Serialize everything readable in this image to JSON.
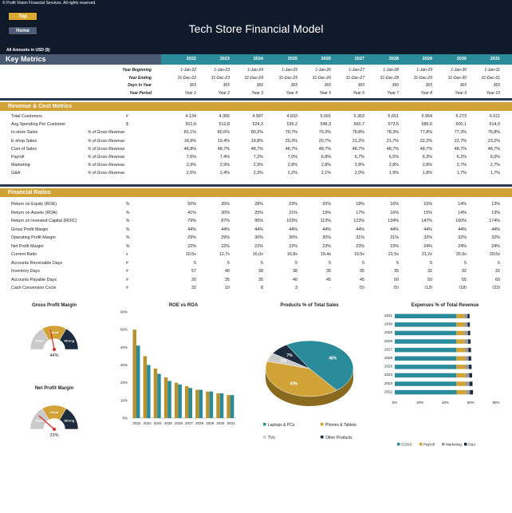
{
  "header": {
    "copyright": "© Profit Vision Financial Services. All rights reserved.",
    "top_label": "Top",
    "home_label": "Home",
    "title": "Tech Store Financial Model",
    "amounts": "All Amounts in  USD ($)"
  },
  "key_metrics": {
    "label": "Key Metrics",
    "years": [
      "2022",
      "2023",
      "2024",
      "2025",
      "2026",
      "2027",
      "2028",
      "2029",
      "2030",
      "2031"
    ]
  },
  "timeline": [
    {
      "label": "Year Beginning",
      "values": [
        "1-Jan-22",
        "1-Jan-23",
        "1-Jan-24",
        "1-Jan-25",
        "1-Jan-26",
        "1-Jan-27",
        "1-Jan-28",
        "1-Jan-29",
        "1-Jan-30",
        "1-Jan-31"
      ]
    },
    {
      "label": "Year Ending",
      "values": [
        "31-Dec-22",
        "31-Dec-23",
        "31-Dec-24",
        "31-Dec-25",
        "31-Dec-26",
        "31-Dec-27",
        "31-Dec-28",
        "31-Dec-29",
        "31-Dec-30",
        "31-Dec-31"
      ]
    },
    {
      "label": "Days in Year",
      "values": [
        "365",
        "365",
        "366",
        "365",
        "365",
        "365",
        "366",
        "365",
        "365",
        "365"
      ]
    },
    {
      "label": "Year Period",
      "values": [
        "Year 1",
        "Year 2",
        "Year 3",
        "Year 4",
        "Year 5",
        "Year 6",
        "Year 7",
        "Year 8",
        "Year 9",
        "Year 10"
      ]
    }
  ],
  "revenue": {
    "title": "Revenue & Cost Metrics",
    "rows": [
      {
        "label": "Total Customers",
        "unit": "#",
        "values": [
          "4.134",
          "4.355",
          "4.587",
          "4.832",
          "5.091",
          "5.363",
          "5.651",
          "5.954",
          "6.273",
          "6.611"
        ]
      },
      {
        "label": "Avg.Spending Per Customer",
        "unit": "$",
        "values": [
          "501,6",
          "512,8",
          "524,3",
          "536,2",
          "548,3",
          "560,7",
          "573,5",
          "586,6",
          "600,1",
          "614,0"
        ]
      },
      {
        "label": "In-store Sales",
        "unit": "% of Gross Revenue",
        "values": [
          "81,1%",
          "80,6%",
          "80,2%",
          "79,7%",
          "79,3%",
          "78,8%",
          "78,3%",
          "77,8%",
          "77,3%",
          "76,8%"
        ]
      },
      {
        "label": "E-shop Sales",
        "unit": "% of Gross Revenue",
        "values": [
          "18,9%",
          "19,4%",
          "19,8%",
          "20,3%",
          "20,7%",
          "21,2%",
          "21,7%",
          "22,2%",
          "22,7%",
          "23,2%"
        ]
      },
      {
        "label": "Cost of Sales",
        "unit": "% of Gross Revenue",
        "values": [
          "48,8%",
          "48,7%",
          "48,7%",
          "48,7%",
          "48,7%",
          "48,7%",
          "48,7%",
          "48,7%",
          "48,7%",
          "48,7%"
        ]
      },
      {
        "label": "Payroll",
        "unit": "% of Gross Revenue",
        "values": [
          "7,6%",
          "7,4%",
          "7,2%",
          "7,0%",
          "6,8%",
          "6,7%",
          "6,5%",
          "6,3%",
          "6,2%",
          "6,0%"
        ]
      },
      {
        "label": "Marketing",
        "unit": "% of Gross Revenue",
        "values": [
          "2,9%",
          "2,9%",
          "2,9%",
          "2,8%",
          "2,8%",
          "2,8%",
          "2,8%",
          "2,8%",
          "2,7%",
          "2,7%"
        ]
      },
      {
        "label": "G&A",
        "unit": "% of Gross Revenue",
        "values": [
          "2,5%",
          "2,4%",
          "2,3%",
          "2,2%",
          "2,1%",
          "2,0%",
          "1,9%",
          "1,8%",
          "1,7%",
          "1,7%"
        ]
      }
    ]
  },
  "ratios": {
    "title": "Financial Ratios",
    "rows": [
      {
        "label": "Return on Equity (ROE)",
        "unit": "%",
        "values": [
          "50%",
          "35%",
          "28%",
          "23%",
          "20%",
          "18%",
          "16%",
          "15%",
          "14%",
          "13%"
        ]
      },
      {
        "label": "Return on Assets (ROA)",
        "unit": "%",
        "values": [
          "41%",
          "30%",
          "25%",
          "21%",
          "19%",
          "17%",
          "16%",
          "15%",
          "14%",
          "13%"
        ]
      },
      {
        "label": "Return on Invested Capital (ROIC)",
        "unit": "%",
        "values": [
          "79%",
          "87%",
          "95%",
          "103%",
          "113%",
          "123%",
          "134%",
          "147%",
          "160%",
          "174%"
        ]
      },
      {
        "label": "Gross Profit Margin",
        "unit": "%",
        "values": [
          "44%",
          "44%",
          "44%",
          "44%",
          "44%",
          "44%",
          "44%",
          "44%",
          "44%",
          "44%"
        ]
      },
      {
        "label": "Operating Profit Margin",
        "unit": "%",
        "values": [
          "29%",
          "29%",
          "30%",
          "30%",
          "30%",
          "31%",
          "31%",
          "32%",
          "32%",
          "32%"
        ]
      },
      {
        "label": "Net Profit Margin",
        "unit": "%",
        "values": [
          "22%",
          "22%",
          "22%",
          "22%",
          "23%",
          "23%",
          "23%",
          "24%",
          "24%",
          "24%"
        ]
      },
      {
        "label": "Current Ratio",
        "unit": "x",
        "values": [
          "10,6x",
          "12,7x",
          "16,0x",
          "16,8x",
          "19,4x",
          "19,5x",
          "21,5x",
          "21,2x",
          "20,9x",
          "20,6x"
        ]
      },
      {
        "label": "Accounts Receivable Days",
        "unit": "#",
        "values": [
          "5",
          "5",
          "5",
          "5",
          "5",
          "5",
          "5",
          "5",
          "5",
          "5"
        ]
      },
      {
        "label": "Inventory Days",
        "unit": "#",
        "values": [
          "57",
          "40",
          "38",
          "38",
          "35",
          "35",
          "35",
          "32",
          "32",
          "32"
        ]
      },
      {
        "label": "Accounts Payable Days",
        "unit": "#",
        "values": [
          "30",
          "35",
          "35",
          "40",
          "45",
          "45",
          "50",
          "50",
          "55",
          "60"
        ]
      },
      {
        "label": "Cash Conversion Cycle",
        "unit": "#",
        "values": [
          "32",
          "10",
          "8",
          "3",
          "-",
          "(5)",
          "(5)",
          "(13)",
          "(18)",
          "(23)"
        ]
      },
      {
        "label": "Debt-to-Equity Ratio",
        "unit": "%",
        "values": [
          "22%",
          "19%",
          "16%",
          "13%",
          "10%",
          "7%",
          "0%",
          "0%",
          "0%",
          "0%"
        ]
      },
      {
        "label": "Debt-to-Capital Ratio",
        "unit": "%",
        "values": [
          "18%",
          "16%",
          "14%",
          "12%",
          "9%",
          "7%",
          "0%",
          "0%",
          "0%",
          "0%"
        ]
      },
      {
        "label": "Equity-to-Capital Ratio",
        "unit": "%",
        "values": [
          "82%",
          "84%",
          "86%",
          "88%",
          "91%",
          "93%",
          "100%",
          "100%",
          "100%",
          "100%"
        ]
      }
    ]
  },
  "charts_title": "Charts",
  "chart_data": [
    {
      "type": "gauge",
      "title": "Gross Profit Margin",
      "value": 44,
      "labels": [
        "Weak",
        "Good",
        "Strong"
      ],
      "value_label": "44%"
    },
    {
      "type": "gauge",
      "title": "Net Profit Margin",
      "value": 23,
      "labels": [
        "Weak",
        "Good",
        "Strong"
      ],
      "value_label": "23%"
    },
    {
      "type": "bar",
      "title": "ROE vs ROA",
      "categories": [
        "2022",
        "2023",
        "2024",
        "2025",
        "2026",
        "2027",
        "2028",
        "2029",
        "2030",
        "2031"
      ],
      "series": [
        {
          "values": [
            50,
            35,
            28,
            23,
            20,
            18,
            16,
            15,
            14,
            13
          ],
          "color": "#b8922e"
        },
        {
          "values": [
            41,
            30,
            25,
            21,
            19,
            17,
            16,
            15,
            14,
            13
          ],
          "color": "#2a8c9a"
        }
      ],
      "yticks": [
        "0%",
        "10%",
        "20%",
        "30%",
        "40%",
        "50%",
        "60%"
      ],
      "ylim": [
        0,
        60
      ]
    },
    {
      "type": "pie",
      "title": "Products % of Total Sales",
      "slices": [
        {
          "name": "Laptops & PCs",
          "value": 48,
          "label": "48%",
          "color": "#2a8c9a"
        },
        {
          "name": "Phones & Tablets",
          "value": 40,
          "label": "40%",
          "color": "#d1a236"
        },
        {
          "name": "TVs",
          "value": 5,
          "label": "5%",
          "color": "#c9c9c9"
        },
        {
          "name": "Other Products",
          "value": 7,
          "label": "7%",
          "color": "#1d2b3e"
        }
      ]
    },
    {
      "type": "bar",
      "title": "Expenses % of Total Revenue",
      "orientation": "horizontal",
      "stacked": true,
      "categories": [
        "2031",
        "2030",
        "2029",
        "2028",
        "2027",
        "2026",
        "2025",
        "2024",
        "2023",
        "2022"
      ],
      "series": [
        {
          "name": "COGS",
          "color": "#2a8c9a",
          "values": [
            48.7,
            48.7,
            48.7,
            48.7,
            48.7,
            48.7,
            48.7,
            48.7,
            48.7,
            48.8
          ]
        },
        {
          "name": "Payroll",
          "color": "#d1a236",
          "values": [
            6.0,
            6.2,
            6.3,
            6.5,
            6.7,
            6.8,
            7.0,
            7.2,
            7.4,
            7.6
          ]
        },
        {
          "name": "Marketing",
          "color": "#9a9a9a",
          "values": [
            2.7,
            2.7,
            2.8,
            2.8,
            2.8,
            2.8,
            2.8,
            2.9,
            2.9,
            2.9
          ]
        },
        {
          "name": "G&A",
          "color": "#1d2b3e",
          "values": [
            1.7,
            1.7,
            1.8,
            1.9,
            2.0,
            2.1,
            2.2,
            2.3,
            2.4,
            2.5
          ]
        }
      ],
      "xticks": [
        "0%",
        "20%",
        "40%",
        "60%",
        "80%"
      ],
      "xlim": [
        0,
        80
      ]
    }
  ]
}
